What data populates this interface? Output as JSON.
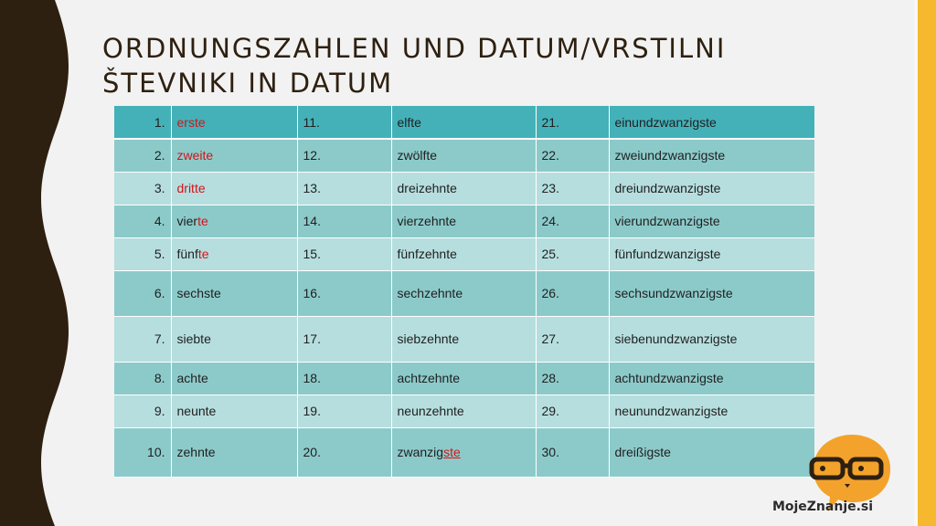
{
  "title": "Ordnungszahlen und Datum/vrstilni števniki in datum",
  "colors": {
    "wave_dark": "#2e2010",
    "accent_orange": "#f5b82e",
    "header_teal": "#44b1b8",
    "row_dark": "#8ccaca",
    "row_light": "#b6dede",
    "highlight_red": "#d0161b",
    "logo_orange": "#f3a22b"
  },
  "table": {
    "rows": [
      {
        "c1": "1.",
        "w1a": "",
        "w1b": "erste",
        "c2": "11.",
        "w2a": "elfte",
        "w2b": "",
        "c3": "21.",
        "w3": "einundzwanzigste"
      },
      {
        "c1": "2.",
        "w1a": "",
        "w1b": "zweite",
        "c2": "12.",
        "w2a": "zwölfte",
        "w2b": "",
        "c3": "22.",
        "w3": "zweiundzwanzigste"
      },
      {
        "c1": "3.",
        "w1a": "",
        "w1b": "dritte",
        "c2": "13.",
        "w2a": "dreizehnte",
        "w2b": "",
        "c3": "23.",
        "w3": "dreiundzwanzigste"
      },
      {
        "c1": "4.",
        "w1a": "vier",
        "w1b": "te",
        "c2": "14.",
        "w2a": "vierzehnte",
        "w2b": "",
        "c3": "24.",
        "w3": "vierundzwanzigste"
      },
      {
        "c1": "5.",
        "w1a": "fünf",
        "w1b": "te",
        "c2": "15.",
        "w2a": "fünfzehnte",
        "w2b": "",
        "c3": "25.",
        "w3": "fünfundzwanzigste"
      },
      {
        "c1": "6.",
        "w1a": "sechste",
        "w1b": "",
        "c2": "16.",
        "w2a": "sechzehnte",
        "w2b": "",
        "c3": "26.",
        "w3": "sechsundzwanzigste"
      },
      {
        "c1": "7.",
        "w1a": "siebte",
        "w1b": "",
        "c2": "17.",
        "w2a": "siebzehnte",
        "w2b": "",
        "c3": "27.",
        "w3": "siebenundzwanzigste"
      },
      {
        "c1": "8.",
        "w1a": "achte",
        "w1b": "",
        "c2": "18.",
        "w2a": "achtzehnte",
        "w2b": "",
        "c3": "28.",
        "w3": "achtundzwanzigste"
      },
      {
        "c1": "9.",
        "w1a": "neunte",
        "w1b": "",
        "c2": "19.",
        "w2a": "neunzehnte",
        "w2b": "",
        "c3": "29.",
        "w3": "neunundzwanzigste"
      },
      {
        "c1": "10.",
        "w1a": "zehnte",
        "w1b": "",
        "c2": "20.",
        "w2a": "zwanzig",
        "w2b": "ste",
        "c3": "30.",
        "w3": "dreißigste"
      }
    ]
  },
  "logo": {
    "text": "MojeZnanje.si",
    "icon": "glasses-speech-bubble-icon"
  }
}
